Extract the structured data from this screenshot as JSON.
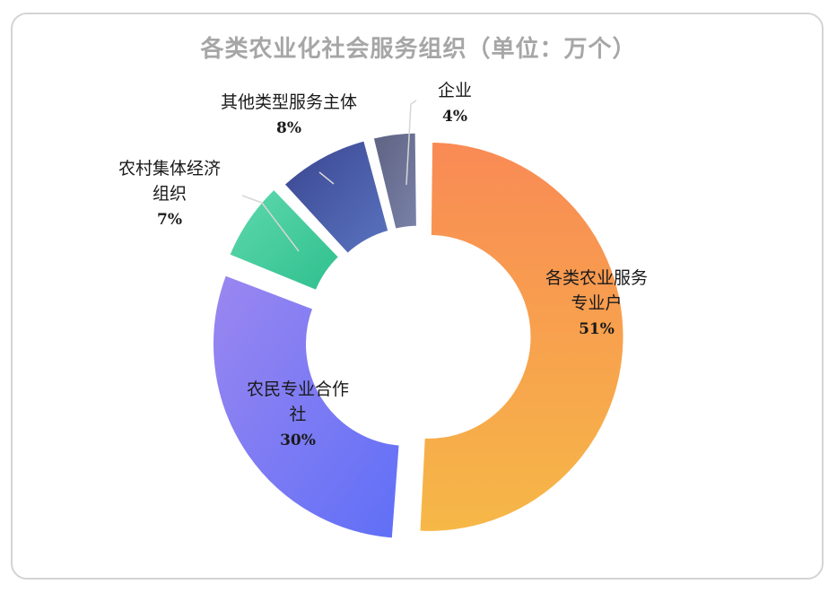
{
  "chart_data": {
    "type": "pie",
    "title": "各类农业化社会服务组织（单位：万个）",
    "categories": [
      "各类农业服务专业户",
      "农民专业合作社",
      "农村集体经济组织",
      "其他类型服务主体",
      "企业"
    ],
    "values": [
      51,
      30,
      7,
      8,
      4
    ],
    "data_labels": [
      "51%",
      "30%",
      "7%",
      "8%",
      "4%"
    ],
    "label_lines": [
      [
        "各类农业服务",
        "专业户"
      ],
      [
        "农民专业合作",
        "社"
      ],
      [
        "农村集体经济",
        "组织"
      ],
      [
        "其他类型服务主体"
      ],
      [
        "企业"
      ]
    ],
    "colors": [
      [
        "#f98a55",
        "#f6b847"
      ],
      [
        "#9b87f0",
        "#5f6ff7"
      ],
      [
        "#5fd9ae",
        "#2fbf8e"
      ],
      [
        "#3a4590",
        "#5a74c0"
      ],
      [
        "#5e6282",
        "#7a82a8"
      ]
    ],
    "donut": true,
    "legend": "none"
  }
}
